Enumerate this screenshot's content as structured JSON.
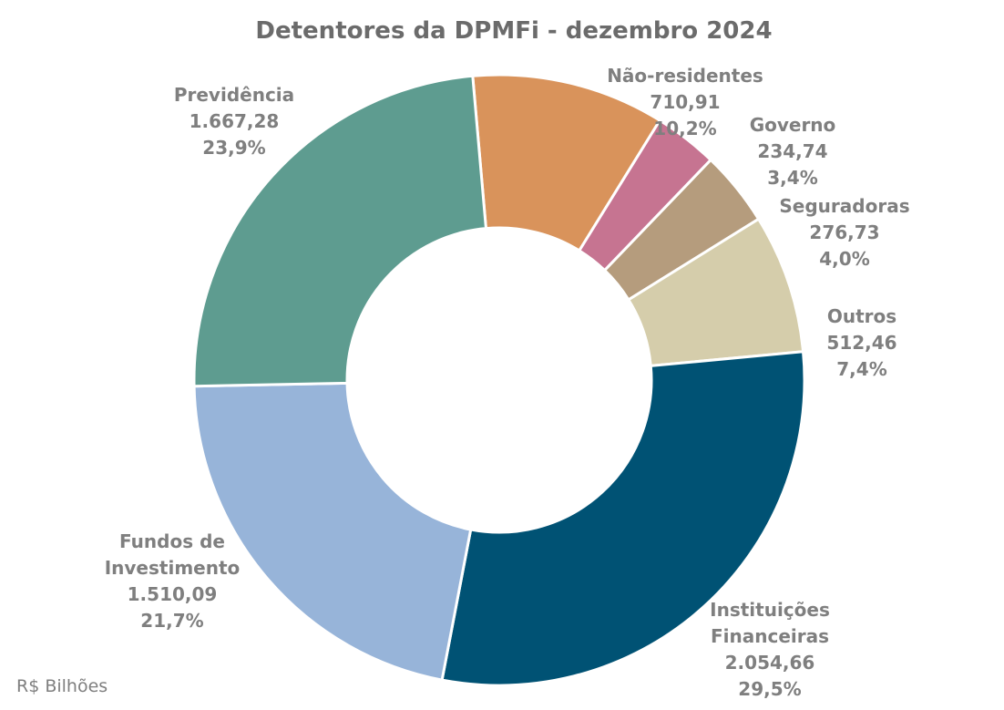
{
  "chart_data": {
    "type": "pie",
    "donut": true,
    "title": "Detentores da DPMFi - dezembro 2024",
    "unit_note": "R$ Bilhões",
    "slices": [
      {
        "name": "Não-residentes",
        "lines": [
          "Não-residentes"
        ],
        "value": 710.91,
        "value_label": "710,91",
        "percent_label": "10,2%",
        "color": "#d9935b"
      },
      {
        "name": "Governo",
        "lines": [
          "Governo"
        ],
        "value": 234.74,
        "value_label": "234,74",
        "percent_label": "3,4%",
        "color": "#c67491"
      },
      {
        "name": "Seguradoras",
        "lines": [
          "Seguradoras"
        ],
        "value": 276.73,
        "value_label": "276,73",
        "percent_label": "4,0%",
        "color": "#b59c7d"
      },
      {
        "name": "Outros",
        "lines": [
          "Outros"
        ],
        "value": 512.46,
        "value_label": "512,46",
        "percent_label": "7,4%",
        "color": "#d5cdab"
      },
      {
        "name": "Instituições Financeiras",
        "lines": [
          "Instituições",
          "Financeiras"
        ],
        "value": 2054.66,
        "value_label": "2.054,66",
        "percent_label": "29,5%",
        "color": "#005274"
      },
      {
        "name": "Fundos de Investimento",
        "lines": [
          "Fundos de",
          "Investimento"
        ],
        "value": 1510.09,
        "value_label": "1.510,09",
        "percent_label": "21,7%",
        "color": "#97b4d9"
      },
      {
        "name": "Previdência",
        "lines": [
          "Previdência"
        ],
        "value": 1667.28,
        "value_label": "1.667,28",
        "percent_label": "23,9%",
        "color": "#5e9c90"
      }
    ]
  }
}
